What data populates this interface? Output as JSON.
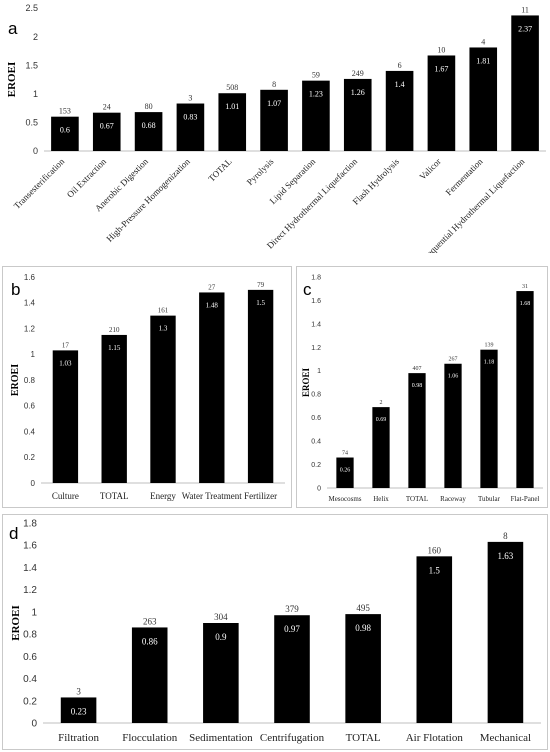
{
  "chart_data": [
    {
      "panel": "a",
      "type": "bar",
      "ylabel": "EROEI",
      "ylim": [
        0,
        2.5
      ],
      "yticks": [
        "0",
        "0.5",
        "1",
        "1.5",
        "2",
        "2.5"
      ],
      "categories": [
        "Transesterification",
        "Oil Extraction",
        "Anerobic Digestion",
        "High-Pressure Homogenization",
        "TOTAL",
        "Pyrolysis",
        "Lipid Separation",
        "Direct Hydrothermal Liquefaction",
        "Flash Hydrolysis",
        "Valicor",
        "Fermentation",
        "Sequential Hydrothermal Liquefaction"
      ],
      "values": [
        0.6,
        0.67,
        0.68,
        0.83,
        1.01,
        1.07,
        1.23,
        1.26,
        1.4,
        1.67,
        1.81,
        2.37
      ],
      "counts": [
        "153",
        "24",
        "80",
        "3",
        "508",
        "8",
        "59",
        "249",
        "6",
        "10",
        "4",
        "11"
      ],
      "value_labels": [
        "0.6",
        "0.67",
        "0.68",
        "0.83",
        "1.01",
        "1.07",
        "1.23",
        "1.26",
        "1.4",
        "1.67",
        "1.81",
        "2.37"
      ],
      "bar_color": "#000000"
    },
    {
      "panel": "b",
      "type": "bar",
      "ylabel": "EROEI",
      "ylim": [
        0,
        1.6
      ],
      "yticks": [
        "0",
        "0.2",
        "0.4",
        "0.6",
        "0.8",
        "1",
        "1.2",
        "1.4",
        "1.6"
      ],
      "categories": [
        "Culture",
        "TOTAL",
        "Energy",
        "Water Treatment",
        "Fertilizer"
      ],
      "values": [
        1.03,
        1.15,
        1.3,
        1.48,
        1.5
      ],
      "counts": [
        "17",
        "210",
        "161",
        "27",
        "79"
      ],
      "value_labels": [
        "1.03",
        "1.15",
        "1.3",
        "1.48",
        "1.5"
      ],
      "bar_color": "#000000"
    },
    {
      "panel": "c",
      "type": "bar",
      "ylabel": "EROEI",
      "ylim": [
        0,
        1.8
      ],
      "yticks": [
        "0",
        "0.2",
        "0.4",
        "0.6",
        "0.8",
        "1",
        "1.2",
        "1.4",
        "1.6",
        "1.8"
      ],
      "categories": [
        "Mesocosms",
        "Helix",
        "TOTAL",
        "Raceway",
        "Tubular",
        "Flat-Panel"
      ],
      "values": [
        0.26,
        0.69,
        0.98,
        1.06,
        1.18,
        1.68
      ],
      "counts": [
        "74",
        "2",
        "407",
        "267",
        "139",
        "31"
      ],
      "value_labels": [
        "0.26",
        "0.69",
        "0.98",
        "1.06",
        "1.18",
        "1.68"
      ],
      "bar_color": "#000000"
    },
    {
      "panel": "d",
      "type": "bar",
      "ylabel": "EROEI",
      "ylim": [
        0,
        1.8
      ],
      "yticks": [
        "0",
        "0.2",
        "0.4",
        "0.6",
        "0.8",
        "1",
        "1.2",
        "1.4",
        "1.6",
        "1.8"
      ],
      "categories": [
        "Filtration",
        "Flocculation",
        "Sedimentation",
        "Centrifugation",
        "TOTAL",
        "Air Flotation",
        "Mechanical"
      ],
      "values": [
        0.23,
        0.86,
        0.9,
        0.97,
        0.98,
        1.5,
        1.63
      ],
      "counts": [
        "3",
        "263",
        "304",
        "379",
        "495",
        "160",
        "8"
      ],
      "value_labels": [
        "0.23",
        "0.86",
        "0.9",
        "0.97",
        "0.98",
        "1.5",
        "1.63"
      ],
      "bar_color": "#000000"
    }
  ],
  "panel_letters": {
    "a": "a",
    "b": "b",
    "c": "c",
    "d": "d"
  }
}
